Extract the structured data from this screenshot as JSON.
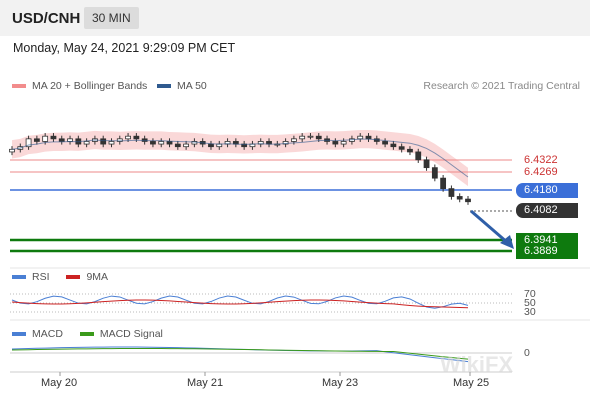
{
  "header": {
    "symbol": "USD/CNH",
    "timeframe": "30 MIN"
  },
  "timestamp": "Monday, May 24, 2021 9:29:09 PM CET",
  "legend": {
    "bollinger": {
      "label": "MA 20 + Bollinger Bands",
      "color": "#f28c8c"
    },
    "ma50": {
      "label": "MA 50",
      "color": "#2f5a8f"
    }
  },
  "credit": "Research © 2021 Trading Central",
  "levels": {
    "resistance_2": "6.4322",
    "resistance_1": "6.4269",
    "pivot": "6.4180",
    "last": "6.4082",
    "support_1": "6.3941",
    "support_2": "6.3889"
  },
  "colors": {
    "resistance": "#cc3333",
    "pivot": "#3b6fd8",
    "last": "#333333",
    "support": "#0e7a0e",
    "rsi": "#4a7fd4",
    "rsi_ma": "#cc2222",
    "macd": "#4a7fd4",
    "macd_signal": "#3a9a1a"
  },
  "rsi_panel": {
    "rsi_label": "RSI",
    "ma_label": "9MA",
    "levels": [
      "70",
      "50",
      "30"
    ]
  },
  "macd_panel": {
    "macd_label": "MACD",
    "signal_label": "MACD Signal",
    "zero_label": "0"
  },
  "x_axis": [
    "May 20",
    "May 21",
    "May 23",
    "May 25"
  ],
  "watermark": "WikiFX",
  "chart_data": {
    "type": "candlestick",
    "y_range": [
      6.385,
      6.443
    ],
    "close_series": [
      6.428,
      6.429,
      6.432,
      6.431,
      6.433,
      6.432,
      6.431,
      6.432,
      6.43,
      6.431,
      6.432,
      6.43,
      6.431,
      6.432,
      6.433,
      6.432,
      6.431,
      6.43,
      6.431,
      6.43,
      6.429,
      6.43,
      6.431,
      6.43,
      6.429,
      6.43,
      6.431,
      6.43,
      6.429,
      6.43,
      6.431,
      6.43,
      6.43,
      6.431,
      6.432,
      6.433,
      6.433,
      6.432,
      6.431,
      6.43,
      6.431,
      6.432,
      6.433,
      6.432,
      6.431,
      6.43,
      6.429,
      6.428,
      6.427,
      6.424,
      6.421,
      6.417,
      6.413,
      6.41,
      6.409,
      6.408
    ],
    "trend_projection": {
      "from": 6.4082,
      "to": 6.3941
    }
  }
}
